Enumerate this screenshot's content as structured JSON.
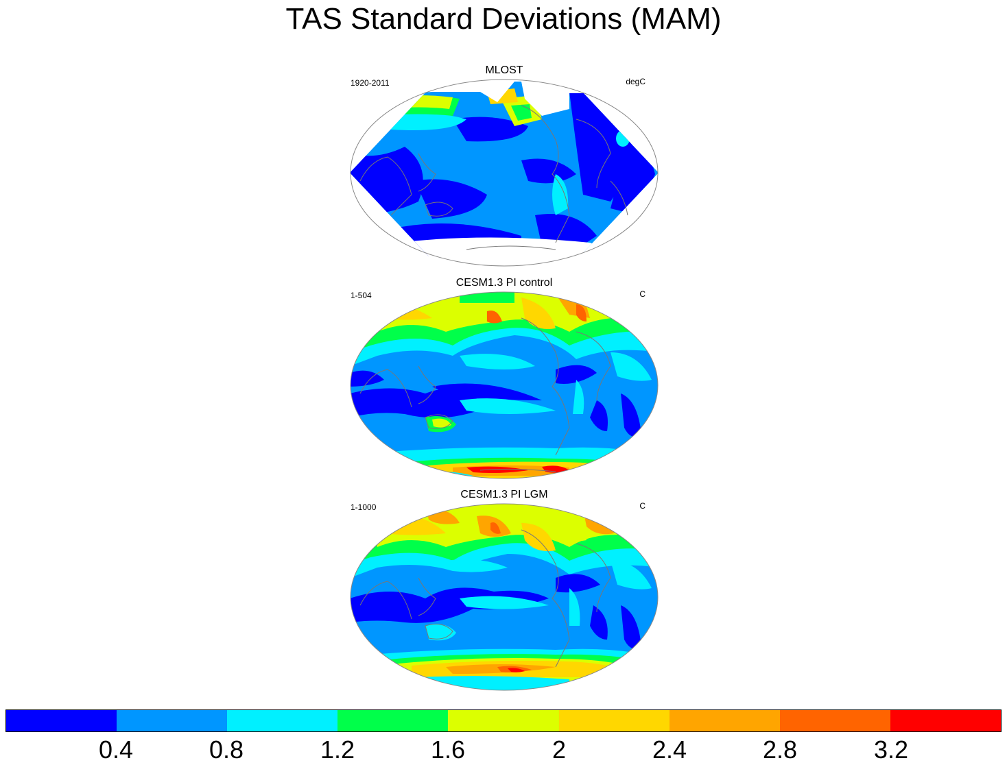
{
  "title": "TAS Standard Deviations (MAM)",
  "panels": [
    {
      "title": "MLOST",
      "left_label": "1920-2011",
      "right_label": "degC"
    },
    {
      "title": "CESM1.3 PI control",
      "left_label": "1-504",
      "right_label": "C"
    },
    {
      "title": "CESM1.3 PI LGM",
      "left_label": "1-1000",
      "right_label": "C"
    }
  ],
  "colorbar": {
    "colors": [
      "#0000ff",
      "#0096ff",
      "#00f0ff",
      "#00ff4a",
      "#dcff00",
      "#ffd700",
      "#ffa500",
      "#ff6400",
      "#ff0000"
    ],
    "labels": [
      "0.4",
      "0.8",
      "1.2",
      "1.6",
      "2",
      "2.4",
      "2.8",
      "3.2"
    ]
  }
}
